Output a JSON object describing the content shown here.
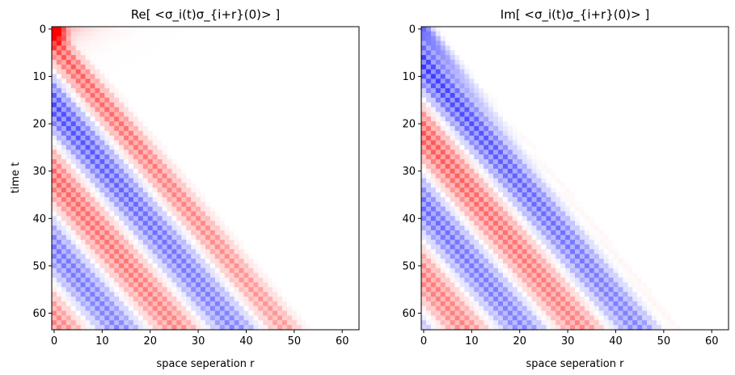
{
  "chart_data": [
    {
      "type": "heatmap",
      "title": "Re[ <σ_i(t)σ_{i+r}(0)> ]",
      "xlabel": "space seperation r",
      "ylabel": "time t",
      "x_ticks": [
        0,
        10,
        20,
        30,
        40,
        50,
        60
      ],
      "y_ticks": [
        0,
        10,
        20,
        30,
        40,
        50,
        60
      ],
      "x_range": [
        0,
        64
      ],
      "y_range": [
        0,
        64
      ],
      "colormap": "bwr",
      "colors": {
        "negative": "#0000ff",
        "zero": "#ffffff",
        "positive": "#ff0000"
      },
      "max_value_at": [
        0,
        0
      ],
      "features": [
        "light-cone edge at r ≈ 0.8 t",
        "red peak near origin",
        "alternating blue/red bands inside the cone",
        "checkerboard modulation"
      ]
    },
    {
      "type": "heatmap",
      "title": "Im[ <σ_i(t)σ_{i+r}(0)> ]",
      "xlabel": "space seperation r",
      "ylabel": "",
      "x_ticks": [
        0,
        10,
        20,
        30,
        40,
        50,
        60
      ],
      "y_ticks": [
        0,
        10,
        20,
        30,
        40,
        50,
        60
      ],
      "x_range": [
        0,
        64
      ],
      "y_range": [
        0,
        64
      ],
      "colormap": "bwr",
      "colors": {
        "negative": "#0000ff",
        "zero": "#ffffff",
        "positive": "#ff0000"
      },
      "features": [
        "blue band along the light-cone front at early times",
        "red band behind the front",
        "alternating bands inside the cone",
        "checkerboard modulation"
      ]
    }
  ]
}
